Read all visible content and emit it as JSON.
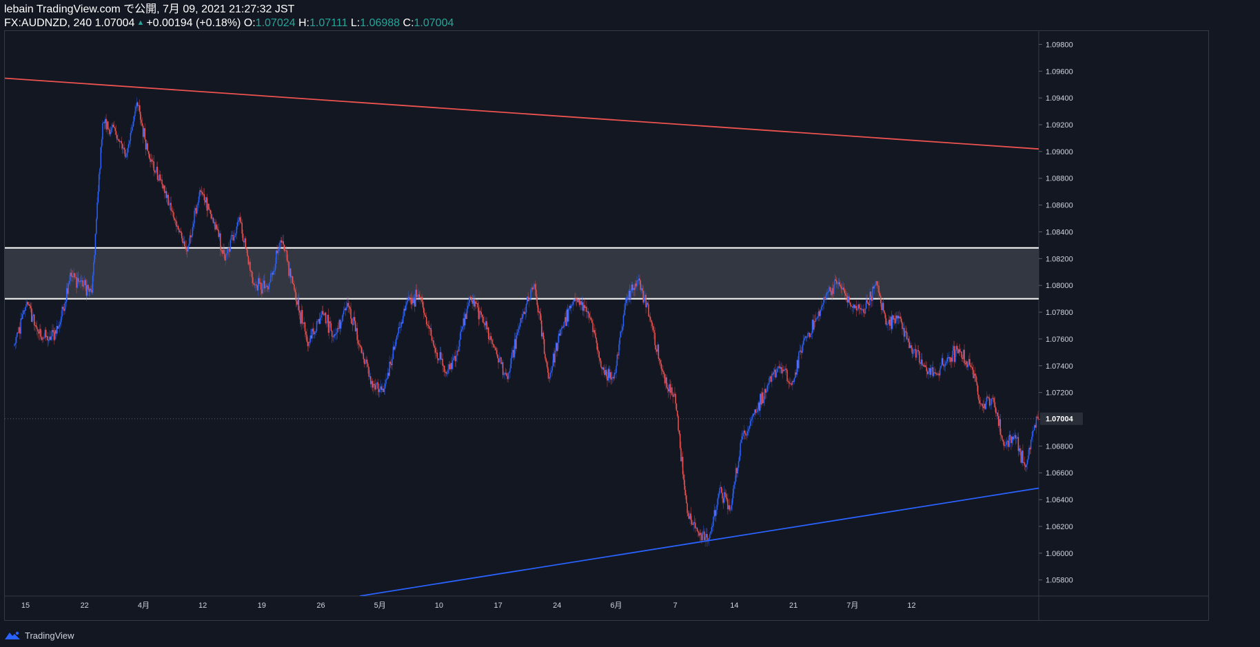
{
  "header": {
    "publish_line": "lebain TradingView.com で公開, 7月 09, 2021 21:27:32 JST",
    "symbol": "FX:AUDNZD, 240",
    "last": "1.07004",
    "arrow": "▲",
    "change": "+0.00194 (+0.18%)",
    "o_label": "O:",
    "o_value": "1.07024",
    "h_label": "H:",
    "h_value": "1.07111",
    "l_label": "L:",
    "l_value": "1.06988",
    "c_label": "C:",
    "c_value": "1.07004"
  },
  "footer": {
    "brand": "TradingView",
    "logo_icon": "tradingview-logo-icon"
  },
  "colors": {
    "background": "#131722",
    "up": "#2962ff",
    "down": "#ef5350",
    "resistance_line": "#ef5350",
    "support_line": "#2962ff",
    "zone_fill": "#3a3d46",
    "zone_border": "#ffffff",
    "axis_text": "#d1d4dc",
    "last_price_bg": "#2a2e39"
  },
  "chart_data": {
    "type": "candlestick",
    "symbol": "FX:AUDNZD",
    "timeframe": "240",
    "y_ticks": [
      "1.05800",
      "1.06000",
      "1.06200",
      "1.06400",
      "1.06600",
      "1.06800",
      "1.07000",
      "1.07200",
      "1.07400",
      "1.07600",
      "1.07800",
      "1.08000",
      "1.08200",
      "1.08400",
      "1.08600",
      "1.08800",
      "1.09000",
      "1.09200",
      "1.09400",
      "1.09600",
      "1.09800"
    ],
    "ylim": [
      1.0568,
      1.099
    ],
    "x_ticks": [
      "15",
      "22",
      "4月",
      "12",
      "19",
      "26",
      "5月",
      "10",
      "17",
      "24",
      "6月",
      "7",
      "14",
      "21",
      "7月",
      "12"
    ],
    "last_price": "1.07004",
    "anchors": [
      [
        0,
        1.0755
      ],
      [
        14,
        1.0788
      ],
      [
        26,
        1.0765
      ],
      [
        38,
        1.076
      ],
      [
        50,
        1.077
      ],
      [
        62,
        1.0808
      ],
      [
        74,
        1.0802
      ],
      [
        86,
        1.0795
      ],
      [
        98,
        1.0922
      ],
      [
        112,
        1.0915
      ],
      [
        124,
        1.0895
      ],
      [
        136,
        1.0938
      ],
      [
        150,
        1.0895
      ],
      [
        164,
        1.0875
      ],
      [
        178,
        1.085
      ],
      [
        192,
        1.0825
      ],
      [
        206,
        1.087
      ],
      [
        220,
        1.085
      ],
      [
        234,
        1.082
      ],
      [
        250,
        1.085
      ],
      [
        266,
        1.08
      ],
      [
        282,
        1.0798
      ],
      [
        296,
        1.0835
      ],
      [
        310,
        1.08
      ],
      [
        326,
        1.0756
      ],
      [
        342,
        1.078
      ],
      [
        356,
        1.0762
      ],
      [
        370,
        1.0788
      ],
      [
        386,
        1.075
      ],
      [
        398,
        1.0725
      ],
      [
        410,
        1.072
      ],
      [
        424,
        1.076
      ],
      [
        438,
        1.079
      ],
      [
        452,
        1.079
      ],
      [
        466,
        1.0755
      ],
      [
        480,
        1.0734
      ],
      [
        492,
        1.075
      ],
      [
        506,
        1.079
      ],
      [
        520,
        1.0776
      ],
      [
        534,
        1.0752
      ],
      [
        548,
        1.073
      ],
      [
        562,
        1.0772
      ],
      [
        578,
        1.08
      ],
      [
        594,
        1.073
      ],
      [
        608,
        1.0768
      ],
      [
        624,
        1.079
      ],
      [
        638,
        1.078
      ],
      [
        652,
        1.074
      ],
      [
        666,
        1.073
      ],
      [
        680,
        1.079
      ],
      [
        694,
        1.0805
      ],
      [
        708,
        1.0772
      ],
      [
        720,
        1.0735
      ],
      [
        734,
        1.0718
      ],
      [
        748,
        1.063
      ],
      [
        760,
        1.0615
      ],
      [
        772,
        1.061
      ],
      [
        784,
        1.0648
      ],
      [
        796,
        1.0632
      ],
      [
        808,
        1.0685
      ],
      [
        822,
        1.0705
      ],
      [
        836,
        1.0722
      ],
      [
        850,
        1.074
      ],
      [
        864,
        1.0725
      ],
      [
        878,
        1.076
      ],
      [
        892,
        1.0775
      ],
      [
        904,
        1.0795
      ],
      [
        916,
        1.0802
      ],
      [
        930,
        1.0785
      ],
      [
        944,
        1.078
      ],
      [
        958,
        1.0802
      ],
      [
        970,
        1.077
      ],
      [
        982,
        1.0778
      ],
      [
        996,
        1.0754
      ],
      [
        1010,
        1.074
      ],
      [
        1024,
        1.0734
      ],
      [
        1038,
        1.0745
      ],
      [
        1050,
        1.0752
      ],
      [
        1064,
        1.0738
      ],
      [
        1076,
        1.071
      ],
      [
        1088,
        1.0716
      ],
      [
        1100,
        1.068
      ],
      [
        1112,
        1.0688
      ],
      [
        1124,
        1.0663
      ],
      [
        1134,
        1.0695
      ],
      [
        1139,
        1.07
      ]
    ],
    "trendlines": [
      {
        "name": "",
        "color": "#ef5350",
        "x1": -16,
        "y1": 1.0955,
        "x2": 1180,
        "y2": 1.09
      },
      {
        "name": "",
        "color": "#2962ff",
        "x1": 384,
        "y1": 1.0568,
        "x2": 1180,
        "y2": 1.0653
      }
    ],
    "zone": {
      "top": 1.0828,
      "bottom": 1.079
    },
    "grid": false
  }
}
